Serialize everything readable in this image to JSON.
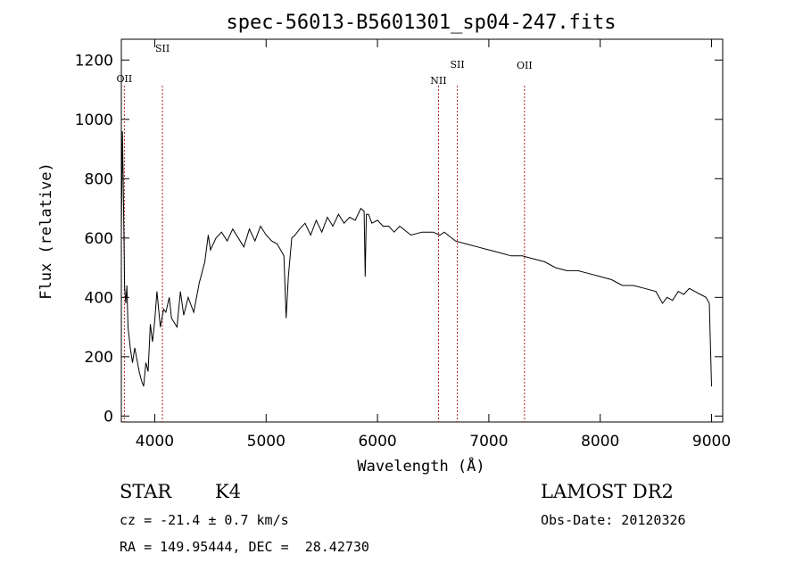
{
  "chart_data": {
    "type": "line",
    "title": "spec-56013-B5601301_sp04-247.fits",
    "xlabel": "Wavelength (Å)",
    "ylabel": "Flux (relative)",
    "xlim": [
      3700,
      9100
    ],
    "ylim": [
      -20,
      1270
    ],
    "xticks": [
      4000,
      5000,
      6000,
      7000,
      8000,
      9000
    ],
    "yticks": [
      0,
      200,
      400,
      600,
      800,
      1000,
      1200
    ],
    "grid": false,
    "series": [
      {
        "x": [
          3700,
          3710,
          3720,
          3730,
          3740,
          3750,
          3760,
          3780,
          3800,
          3820,
          3840,
          3860,
          3880,
          3900,
          3920,
          3940,
          3960,
          3980,
          4000,
          4020,
          4050,
          4080,
          4100,
          4130,
          4150,
          4200,
          4230,
          4260,
          4300,
          4350,
          4400,
          4450,
          4480,
          4500,
          4550,
          4600,
          4650,
          4700,
          4750,
          4800,
          4850,
          4900,
          4950,
          5000,
          5050,
          5100,
          5130,
          5160,
          5180,
          5200,
          5230,
          5260,
          5300,
          5350,
          5400,
          5450,
          5500,
          5550,
          5600,
          5650,
          5700,
          5750,
          5800,
          5850,
          5880,
          5890,
          5900,
          5920,
          5950,
          6000,
          6050,
          6100,
          6150,
          6200,
          6300,
          6400,
          6500,
          6560,
          6600,
          6700,
          6800,
          6900,
          7000,
          7100,
          7200,
          7300,
          7400,
          7500,
          7600,
          7700,
          7800,
          7900,
          8000,
          8100,
          8200,
          8300,
          8400,
          8500,
          8560,
          8600,
          8650,
          8700,
          8750,
          8800,
          8850,
          8900,
          8950,
          8980,
          9000
        ],
        "values": [
          620,
          960,
          700,
          430,
          380,
          440,
          300,
          230,
          180,
          230,
          190,
          150,
          120,
          100,
          180,
          150,
          310,
          250,
          320,
          420,
          300,
          360,
          350,
          400,
          330,
          300,
          420,
          340,
          400,
          350,
          450,
          520,
          610,
          560,
          600,
          620,
          590,
          630,
          600,
          570,
          630,
          590,
          640,
          610,
          590,
          580,
          560,
          540,
          330,
          470,
          600,
          610,
          630,
          650,
          610,
          660,
          620,
          670,
          640,
          680,
          650,
          670,
          660,
          700,
          690,
          470,
          680,
          680,
          650,
          660,
          640,
          640,
          620,
          640,
          610,
          620,
          620,
          610,
          620,
          590,
          580,
          570,
          560,
          550,
          540,
          540,
          530,
          520,
          500,
          490,
          490,
          480,
          470,
          460,
          440,
          440,
          430,
          420,
          380,
          400,
          390,
          420,
          410,
          430,
          420,
          410,
          400,
          380,
          100
        ]
      }
    ],
    "emission_lines": [
      {
        "label": "OII",
        "wavelength": 3727
      },
      {
        "label": "SII",
        "wavelength": 4069
      },
      {
        "label": "NII",
        "wavelength": 6548
      },
      {
        "label": "SII",
        "wavelength": 6717
      },
      {
        "label": "OII",
        "wavelength": 7320
      }
    ],
    "line_color": "#000000",
    "marker_color": "#b22222"
  },
  "info": {
    "class": "STAR",
    "subclass": "K4",
    "survey": "LAMOST DR2",
    "cz": "cz = -21.4 ± 0.7 km/s",
    "obs_date": "Obs-Date: 20120326",
    "coords": "RA = 149.95444, DEC =  28.42730"
  }
}
